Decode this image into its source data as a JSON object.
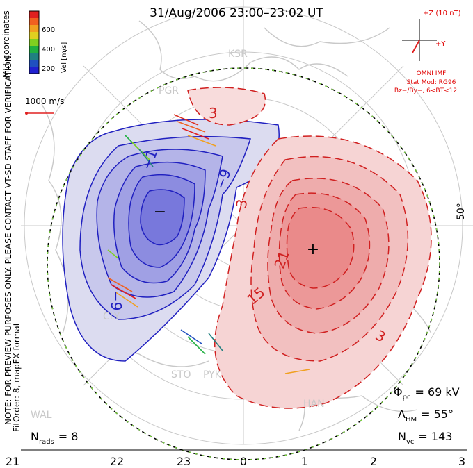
{
  "title": "31/Aug/2006 23:00–23:02 UT",
  "colorbar": {
    "axis_label": "Vel [m/s]",
    "ticks": [
      "600",
      "400",
      "200"
    ],
    "colors": [
      "#e02020",
      "#f06020",
      "#f0a020",
      "#e0d020",
      "#80d020",
      "#20b040",
      "#208080",
      "#2050c0",
      "#2020d0"
    ]
  },
  "coord_label": "MLT coordinates",
  "scale_label": "1000 m/s",
  "side_note_1": "NOTE: FOR PREVIEW PURPOSES ONLY. PLEASE CONTACT VT-SD STAFF FOR VERIFICATION.",
  "side_note_2": "FitOrder: 8, mapEX format",
  "imf": {
    "z_label": "+Z (10 nT)",
    "y_label": "+Y",
    "line1": "OMNI IMF",
    "line2": "Stat Mod: RG96",
    "line3": "Bz−/By−, 6<BT<12"
  },
  "lat_label": "50°",
  "stations": [
    "KSR",
    "PGR",
    "CLY",
    "STO",
    "PYK",
    "HAN",
    "WAL"
  ],
  "contour_labels": {
    "neg": [
      "−1",
      "−9",
      "−9"
    ],
    "pos": [
      "3",
      "3",
      "21",
      "15",
      "3"
    ]
  },
  "min_marker": "−",
  "max_marker": "+",
  "stats": {
    "phi_symbol": "Φ",
    "phi_sub": "pc",
    "phi_value": "= 69 kV",
    "lambda_symbol": "Λ",
    "lambda_sub": "HM",
    "lambda_value": "= 55°",
    "nvc_symbol": "N",
    "nvc_sub": "vc",
    "nvc_value": "= 143",
    "nrads_symbol": "N",
    "nrads_sub": "rads",
    "nrads_value": "= 8"
  },
  "mlt_ticks": [
    "21",
    "22",
    "23",
    "0",
    "1",
    "2",
    "3"
  ],
  "colors": {
    "neg": "#2020c0",
    "pos": "#d02020",
    "grid": "#c8c8c8",
    "boundary": "#000000"
  }
}
